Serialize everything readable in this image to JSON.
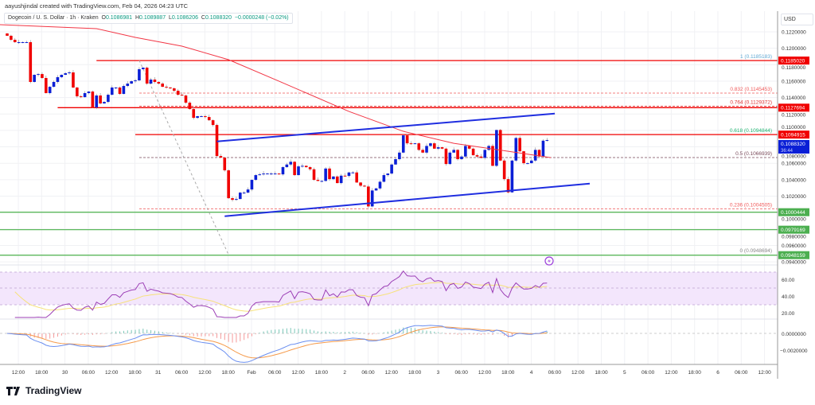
{
  "credit": "aayushjindal created with TradingView.com, Feb 04, 2026 04:23 UTC",
  "legend": {
    "symbol": "Dogecoin / U. S. Dollar · 1h · Kraken",
    "open_label": "O",
    "open": "0.1086981",
    "high_label": "H",
    "high": "0.1089887",
    "low_label": "L",
    "low": "0.1086206",
    "close_label": "C",
    "close": "0.1088320",
    "change": "−0.0000248 (−0.02%)"
  },
  "currency": "USD",
  "colors": {
    "up": "#0a1fd6",
    "down": "#f00000",
    "ma": "#f23645",
    "rsi": "#9c3fb6",
    "rsi_ma": "#f7e27a",
    "macd": "#6b8ff0",
    "signal": "#f59a4a",
    "support": "#4caf50",
    "resistance": "#f00000",
    "channel": "#1f2ee0"
  },
  "price_axis": [
    "0.1220000",
    "0.1200000",
    "0.1180000",
    "0.1160000",
    "0.1140000",
    "0.1120000",
    "0.1100000",
    "0.1080000",
    "0.1060000",
    "0.1040000",
    "0.1020000",
    "0.1000000",
    "0.0980000",
    "0.0960000",
    "0.0940000"
  ],
  "price_tags": [
    {
      "value": "0.1185020",
      "kind": "resistance"
    },
    {
      "value": "0.1127694",
      "kind": "resistance"
    },
    {
      "value": "0.1094915",
      "kind": "resistance"
    },
    {
      "value": "0.1000444",
      "kind": "support"
    },
    {
      "value": "0.0979169",
      "kind": "support"
    },
    {
      "value": "0.0948159",
      "kind": "support"
    }
  ],
  "current_price": {
    "value": "0.1088320",
    "countdown": "36:44"
  },
  "fib_levels": [
    {
      "label": "1 (0.1185183)",
      "price": 0.1185183,
      "color": "#5fa8d3",
      "line": false
    },
    {
      "label": "0.832 (0.1145453)",
      "price": 0.1145453,
      "color": "#f05a5a",
      "line": true
    },
    {
      "label": "0.764 (0.1129372)",
      "price": 0.1129372,
      "color": "#e03030",
      "line": true
    },
    {
      "label": "0.618 (0.1094844)",
      "price": 0.1094844,
      "color": "#22b573",
      "line": false
    },
    {
      "label": "0.5 (0.1066939)",
      "price": 0.1066939,
      "color": "#7a4a5a",
      "line": true
    },
    {
      "label": "0.236 (0.1004505)",
      "price": 0.1004505,
      "color": "#f05a5a",
      "line": true
    },
    {
      "label": "0 (0.0948694)",
      "price": 0.0948694,
      "color": "#888888",
      "line": false
    }
  ],
  "rsi_axis": [
    "60.00",
    "40.00",
    "20.00"
  ],
  "macd_axis": [
    "0.0000000",
    "−0.0020000"
  ],
  "time_axis": [
    "12:00",
    "18:00",
    "30",
    "06:00",
    "12:00",
    "18:00",
    "31",
    "06:00",
    "12:00",
    "18:00",
    "Feb",
    "06:00",
    "12:00",
    "18:00",
    "2",
    "06:00",
    "12:00",
    "18:00",
    "3",
    "06:00",
    "12:00",
    "18:00",
    "4",
    "06:00",
    "12:00",
    "18:00",
    "5",
    "06:00",
    "12:00",
    "18:00",
    "6",
    "06:00",
    "12:00"
  ],
  "footer_brand": "TradingView",
  "chart_data": {
    "type": "candlestick",
    "interval": "1h",
    "ylim": [
      0.094,
      0.123
    ],
    "grid": true,
    "closes": [
      0.12152,
      0.12103,
      0.12074,
      0.12074,
      0.12074,
      0.12074,
      0.1159,
      0.11677,
      0.11686,
      0.11638,
      0.11454,
      0.11531,
      0.1159,
      0.11648,
      0.11677,
      0.11696,
      0.11706,
      0.11522,
      0.11415,
      0.11405,
      0.11454,
      0.11473,
      0.11279,
      0.11425,
      0.11328,
      0.11347,
      0.11434,
      0.11522,
      0.11522,
      0.11444,
      0.11541,
      0.1157,
      0.11599,
      0.11609,
      0.11745,
      0.11764,
      0.1157,
      0.11619,
      0.1159,
      0.1157,
      0.11531,
      0.11522,
      0.11512,
      0.11483,
      0.11434,
      0.11425,
      0.11338,
      0.1126,
      0.11153,
      0.11173,
      0.11173,
      0.11163,
      0.11124,
      0.11066,
      0.10688,
      0.10669,
      0.10514,
      0.10175,
      0.10155,
      0.10165,
      0.10243,
      0.10243,
      0.10281,
      0.10398,
      0.10456,
      0.10465,
      0.10475,
      0.10475,
      0.10475,
      0.10475,
      0.10465,
      0.10553,
      0.10585,
      0.10618,
      0.10456,
      0.10562,
      0.10569,
      0.10553,
      0.10527,
      0.10398,
      0.10385,
      0.10385,
      0.10536,
      0.10407,
      0.10439,
      0.10359,
      0.10449,
      0.10446,
      0.10488,
      0.10488,
      0.10366,
      0.10327,
      0.10317,
      0.10075,
      0.10269,
      0.10294,
      0.10375,
      0.10456,
      0.10475,
      0.10585,
      0.1065,
      0.1073,
      0.1094,
      0.10843,
      0.10836,
      0.10843,
      0.10763,
      0.1073,
      0.10811,
      0.10843,
      0.10778,
      0.10795,
      0.10778,
      0.10591,
      0.1073,
      0.10763,
      0.1065,
      0.10682,
      0.10811,
      0.10778,
      0.10698,
      0.10682,
      0.10666,
      0.10763,
      0.10811,
      0.10569,
      0.11005,
      0.10633,
      0.10407,
      0.10246,
      0.10633,
      0.10908,
      0.10746,
      0.10601,
      0.10601,
      0.10633,
      0.10763,
      0.10682,
      0.10875,
      0.10883
    ],
    "moving_average": [
      [
        -2,
        0.12287
      ],
      [
        23,
        0.12239
      ],
      [
        33,
        0.12132
      ],
      [
        45,
        0.12026
      ],
      [
        57,
        0.11861
      ],
      [
        70,
        0.11599
      ],
      [
        88,
        0.11231
      ],
      [
        102,
        0.10989
      ],
      [
        115,
        0.10843
      ],
      [
        129,
        0.10746
      ],
      [
        140,
        0.10669
      ]
    ],
    "horizontal_lines": [
      {
        "price": 0.118502,
        "from": 23,
        "kind": "resistance"
      },
      {
        "price": 0.1127694,
        "from": 13,
        "kind": "resistance"
      },
      {
        "price": 0.1094915,
        "from": 33,
        "kind": "resistance"
      },
      {
        "price": 0.1000444,
        "from": -2,
        "kind": "support"
      },
      {
        "price": 0.0979169,
        "from": -2,
        "kind": "support"
      },
      {
        "price": 0.0948159,
        "from": -2,
        "kind": "support"
      }
    ],
    "channel": {
      "upper": [
        [
          54,
          0.10866
        ],
        [
          141,
          0.11205
        ]
      ],
      "lower": [
        [
          56,
          0.09956
        ],
        [
          150,
          0.10353
        ]
      ]
    },
    "fib_anchor": [
      [
        34,
        0.1185183
      ],
      [
        57,
        0.0948694
      ]
    ]
  }
}
